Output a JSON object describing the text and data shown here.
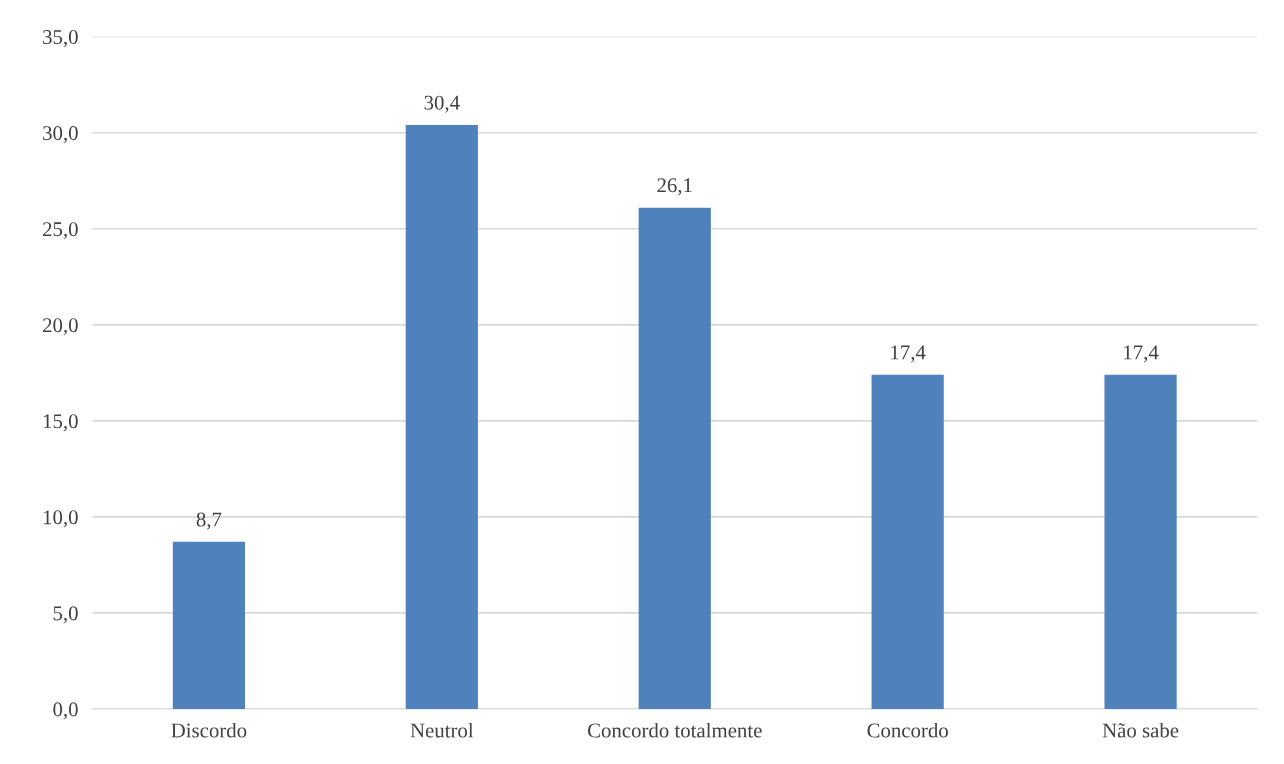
{
  "chart_data": {
    "type": "bar",
    "categories": [
      "Discordo",
      "Neutrol",
      "Concordo totalmente",
      "Concordo",
      "Não sabe"
    ],
    "values": [
      8.7,
      30.4,
      26.1,
      17.4,
      17.4
    ],
    "value_labels": [
      "8,7",
      "30,4",
      "26,1",
      "17,4",
      "17,4"
    ],
    "color": "#4f81bd",
    "ylim": [
      0,
      35
    ],
    "yticks": [
      {
        "value": 0,
        "label": "0,0"
      },
      {
        "value": 5,
        "label": "5,0"
      },
      {
        "value": 10,
        "label": "10,0"
      },
      {
        "value": 15,
        "label": "15,0"
      },
      {
        "value": 20,
        "label": "20,0"
      },
      {
        "value": 25,
        "label": "25,0"
      },
      {
        "value": 30,
        "label": "30,0"
      },
      {
        "value": 35,
        "label": "35,0"
      }
    ],
    "grid": "y"
  }
}
